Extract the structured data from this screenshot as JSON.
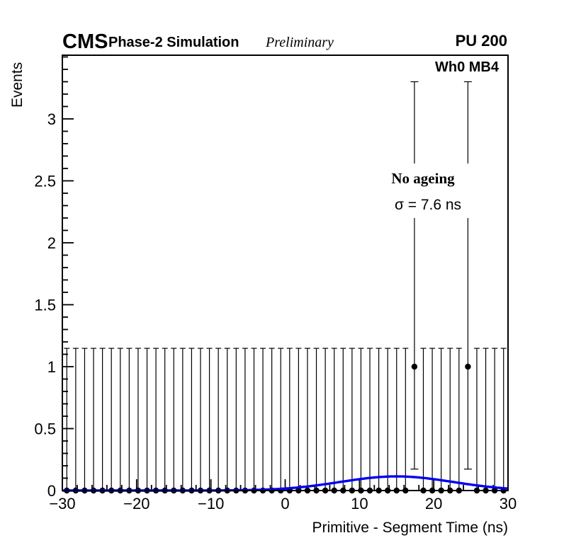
{
  "header": {
    "experiment": "CMS",
    "label": "Phase-2 Simulation",
    "sublabel": "Preliminary",
    "right_label": "PU 200"
  },
  "plot_label": "Wh0 MB4",
  "annotations": {
    "line1": "No ageing",
    "line2": "σ = 7.6 ns"
  },
  "colors": {
    "fit_curve": "#0000f0",
    "marker": "#000000",
    "frame": "#000000",
    "background": "#ffffff"
  },
  "chart_data": {
    "type": "bar",
    "subtype": "histogram-with-poisson-errors-and-gaussian-fit",
    "title": "",
    "xlabel": "Primitive - Segment Time (ns)",
    "ylabel": "Events",
    "xlim": [
      -30,
      30
    ],
    "ylim": [
      0,
      3.514
    ],
    "x_major_ticks": [
      -30,
      -20,
      -10,
      0,
      10,
      20,
      30
    ],
    "x_major_tick_labels": [
      "−30",
      "−20",
      "−10",
      "0",
      "10",
      "20",
      "30"
    ],
    "x_minor_step": 2,
    "y_major_ticks": [
      0,
      0.5,
      1,
      1.5,
      2,
      2.5,
      3
    ],
    "y_major_tick_labels": [
      "0",
      "0.5",
      "1",
      "1.5",
      "2",
      "2.5",
      "3"
    ],
    "y_minor_step": 0.1,
    "grid": false,
    "legend_position": "top-right-inside",
    "bins": {
      "n_bins": 50,
      "bin_width": 1.2,
      "first_edge": -30,
      "last_edge": 30,
      "zero_bin_content": 0,
      "nonzero_bins": [
        {
          "center": 17.4,
          "content": 1
        },
        {
          "center": 24.6,
          "content": 1
        }
      ]
    },
    "poisson_errors": {
      "zero_count_upper": 1.148,
      "one_count_upper": 2.3,
      "one_count_lower": 0.827
    },
    "fit": {
      "type": "gaussian",
      "amplitude": 0.114,
      "mean": 15,
      "sigma": 7.6
    }
  }
}
